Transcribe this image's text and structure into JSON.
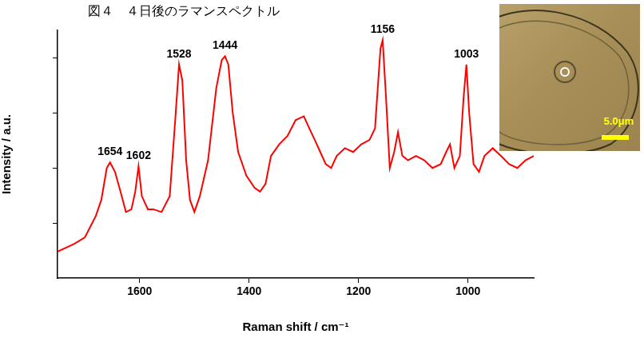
{
  "chart_data": {
    "type": "line",
    "title": "図４　４日後のラマンスペクトル",
    "x_label": "Raman shift / cm⁻¹",
    "y_label": "Intensity / a.u.",
    "x": [
      1750,
      1720,
      1700,
      1680,
      1670,
      1660,
      1654,
      1645,
      1635,
      1625,
      1615,
      1608,
      1602,
      1596,
      1585,
      1575,
      1560,
      1545,
      1535,
      1528,
      1522,
      1515,
      1508,
      1500,
      1490,
      1475,
      1460,
      1450,
      1444,
      1438,
      1430,
      1420,
      1405,
      1390,
      1380,
      1370,
      1360,
      1345,
      1330,
      1315,
      1300,
      1290,
      1280,
      1270,
      1260,
      1250,
      1240,
      1225,
      1210,
      1195,
      1180,
      1170,
      1160,
      1156,
      1150,
      1143,
      1135,
      1128,
      1120,
      1110,
      1095,
      1080,
      1065,
      1050,
      1040,
      1033,
      1025,
      1015,
      1008,
      1003,
      998,
      990,
      980,
      970,
      955,
      940,
      925,
      910,
      895,
      880
    ],
    "values": [
      0.48,
      0.62,
      0.74,
      1.13,
      1.42,
      2.0,
      2.1,
      1.93,
      1.57,
      1.2,
      1.25,
      1.57,
      2.03,
      1.49,
      1.25,
      1.25,
      1.2,
      1.49,
      2.87,
      3.88,
      3.59,
      2.14,
      1.42,
      1.2,
      1.49,
      2.14,
      3.45,
      3.96,
      4.03,
      3.88,
      3.01,
      2.29,
      1.86,
      1.64,
      1.57,
      1.71,
      2.22,
      2.43,
      2.58,
      2.87,
      2.94,
      2.72,
      2.51,
      2.29,
      2.07,
      2.0,
      2.22,
      2.36,
      2.29,
      2.43,
      2.51,
      2.72,
      4.17,
      4.32,
      3.3,
      2.0,
      2.29,
      2.65,
      2.22,
      2.14,
      2.22,
      2.14,
      2.0,
      2.07,
      2.29,
      2.43,
      2.0,
      2.22,
      3.3,
      3.88,
      3.01,
      2.07,
      1.93,
      2.22,
      2.36,
      2.22,
      2.07,
      2.0,
      2.14,
      2.22
    ],
    "color": "#ff0000",
    "xlim": [
      1750,
      880
    ],
    "xticks": [
      1600,
      1400,
      1200,
      1000
    ],
    "ylim": [
      0,
      4.5
    ],
    "yticks": [
      1,
      2,
      3,
      4
    ],
    "tick_labels": "x",
    "grid": false,
    "annotations": [
      {
        "text": "1654",
        "x": 1654,
        "y": 2.1
      },
      {
        "text": "1602",
        "x": 1602,
        "y": 2.03
      },
      {
        "text": "1528",
        "x": 1528,
        "y": 3.88
      },
      {
        "text": "1444",
        "x": 1444,
        "y": 4.03
      },
      {
        "text": "1156",
        "x": 1156,
        "y": 4.32
      },
      {
        "text": "1003",
        "x": 1003,
        "y": 3.88
      }
    ],
    "inset": {
      "scale_bar": "5.0μm"
    }
  }
}
